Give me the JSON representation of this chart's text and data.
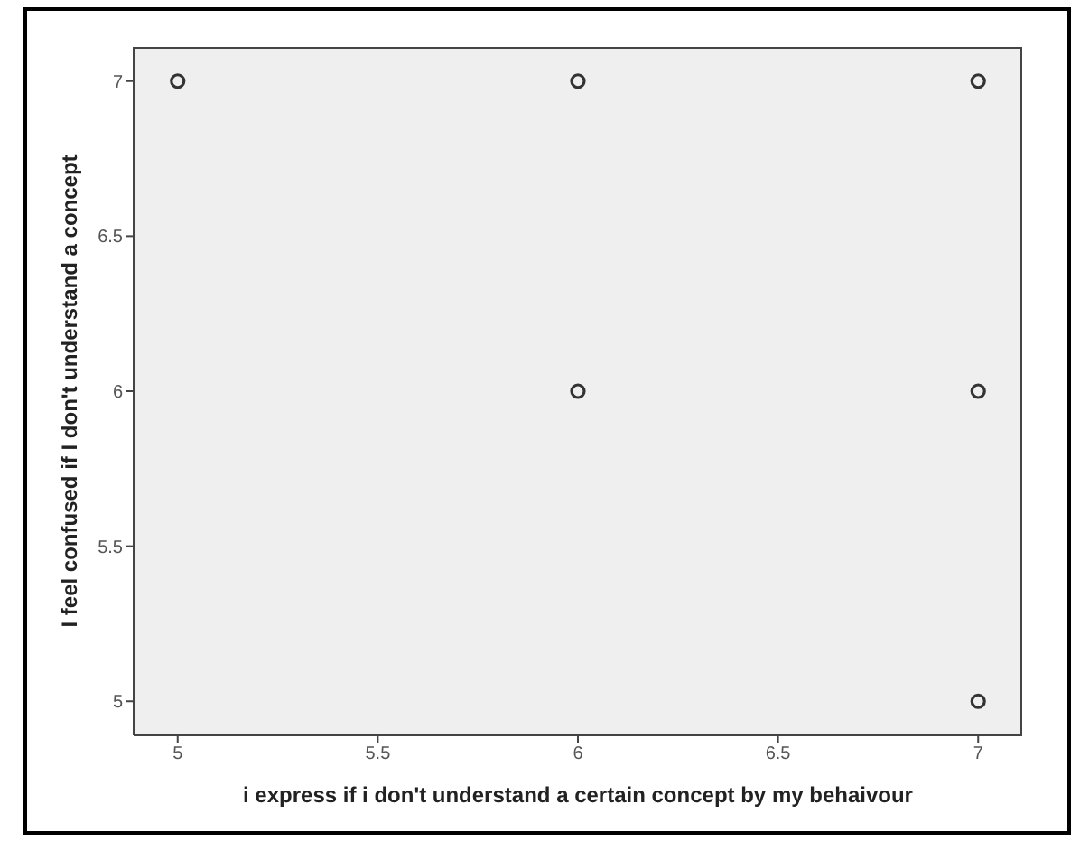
{
  "chart_data": {
    "type": "scatter",
    "xlabel": "i express if i don't understand a certain concept by my behaivour",
    "ylabel": "I feel confused if I don't understand a  concept",
    "x": [
      5,
      6,
      7,
      6,
      7,
      7
    ],
    "values": [
      7,
      7,
      7,
      6,
      6,
      5
    ],
    "color": "#333333",
    "marker": "circle",
    "xlim": [
      4.89,
      7.11
    ],
    "xticks": [
      5,
      5.5,
      6,
      6.5,
      7
    ],
    "ylim": [
      4.89,
      7.11
    ],
    "yticks": [
      5,
      5.5,
      6,
      6.5,
      7
    ],
    "grid": false
  }
}
